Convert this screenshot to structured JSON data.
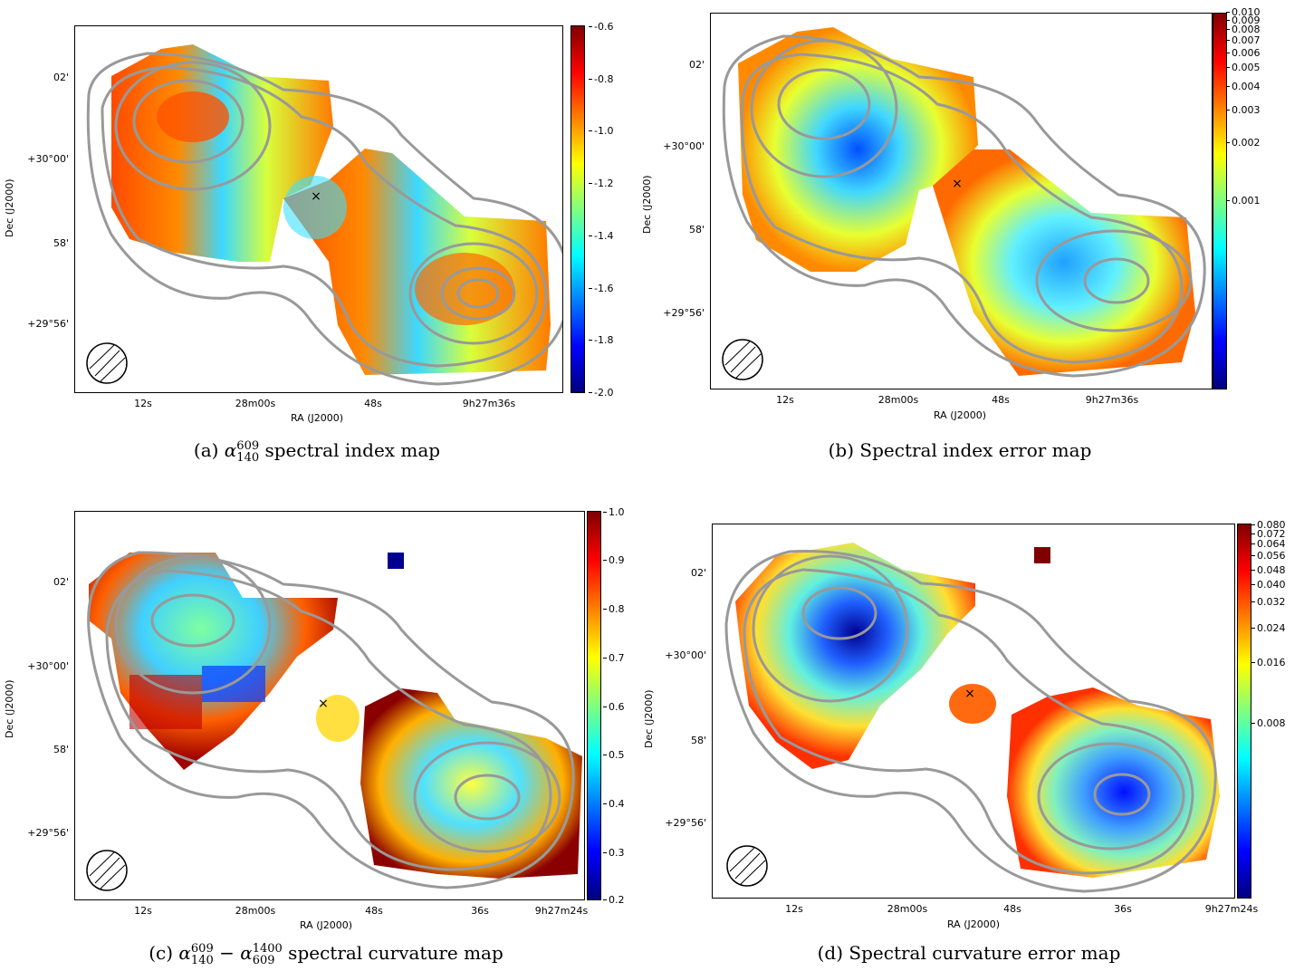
{
  "panels": {
    "a": {
      "caption_label": "(a)",
      "caption_text": " spectral index map",
      "cb_ticks": [
        "-0.6",
        "-0.8",
        "-1.0",
        "-1.2",
        "-1.4",
        "-1.6",
        "-1.8",
        "-2.0"
      ],
      "yticks": [
        "02'",
        "+30°00'",
        "58'",
        "+29°56'"
      ],
      "xticks": [
        "12s",
        "28m00s",
        "48s",
        "9h27m36s"
      ],
      "xlabel": "RA (J2000)",
      "ylabel": "Dec (J2000)"
    },
    "b": {
      "caption_label": "(b)",
      "caption_text": " Spectral index error map",
      "cb_ticks": [
        "0.010",
        "0.009",
        "0.008",
        "0.007",
        "0.006",
        "0.005",
        "0.004",
        "0.003",
        "0.002",
        "0.001"
      ],
      "yticks": [
        "02'",
        "+30°00'",
        "58'",
        "+29°56'"
      ],
      "xticks": [
        "12s",
        "28m00s",
        "48s",
        "9h27m36s"
      ],
      "xlabel": "RA (J2000)",
      "ylabel": "Dec (J2000)"
    },
    "c": {
      "caption_label": "(c)",
      "caption_text": " spectral curvature map",
      "cb_ticks": [
        "1.0",
        "0.9",
        "0.8",
        "0.7",
        "0.6",
        "0.5",
        "0.4",
        "0.3",
        "0.2"
      ],
      "yticks": [
        "02'",
        "+30°00'",
        "58'",
        "+29°56'"
      ],
      "xticks": [
        "12s",
        "28m00s",
        "48s",
        "36s",
        "9h27m24s"
      ],
      "xlabel": "RA (J2000)",
      "ylabel": "Dec (J2000)"
    },
    "d": {
      "caption_label": "(d)",
      "caption_text": " Spectral curvature error map",
      "cb_ticks": [
        "0.080",
        "0.072",
        "0.064",
        "0.056",
        "0.048",
        "0.040",
        "0.032",
        "0.024",
        "0.016",
        "0.008"
      ],
      "yticks": [
        "02'",
        "+30°00'",
        "58'",
        "+29°56'"
      ],
      "xticks": [
        "12s",
        "28m00s",
        "48s",
        "36s",
        "9h27m24s"
      ],
      "xlabel": "RA (J2000)",
      "ylabel": "Dec (J2000)"
    }
  },
  "math": {
    "alpha": "α",
    "a_sup": "609",
    "a_sub": "140",
    "c_sup2": "1400",
    "c_sub2": "609",
    "minus": "−"
  },
  "marker": "×",
  "colormap": [
    "#00007f",
    "#0000ff",
    "#007fff",
    "#00ffff",
    "#7fff7f",
    "#ffff00",
    "#ff7f00",
    "#ff0000",
    "#7f0000"
  ],
  "contour_color": "#999999"
}
